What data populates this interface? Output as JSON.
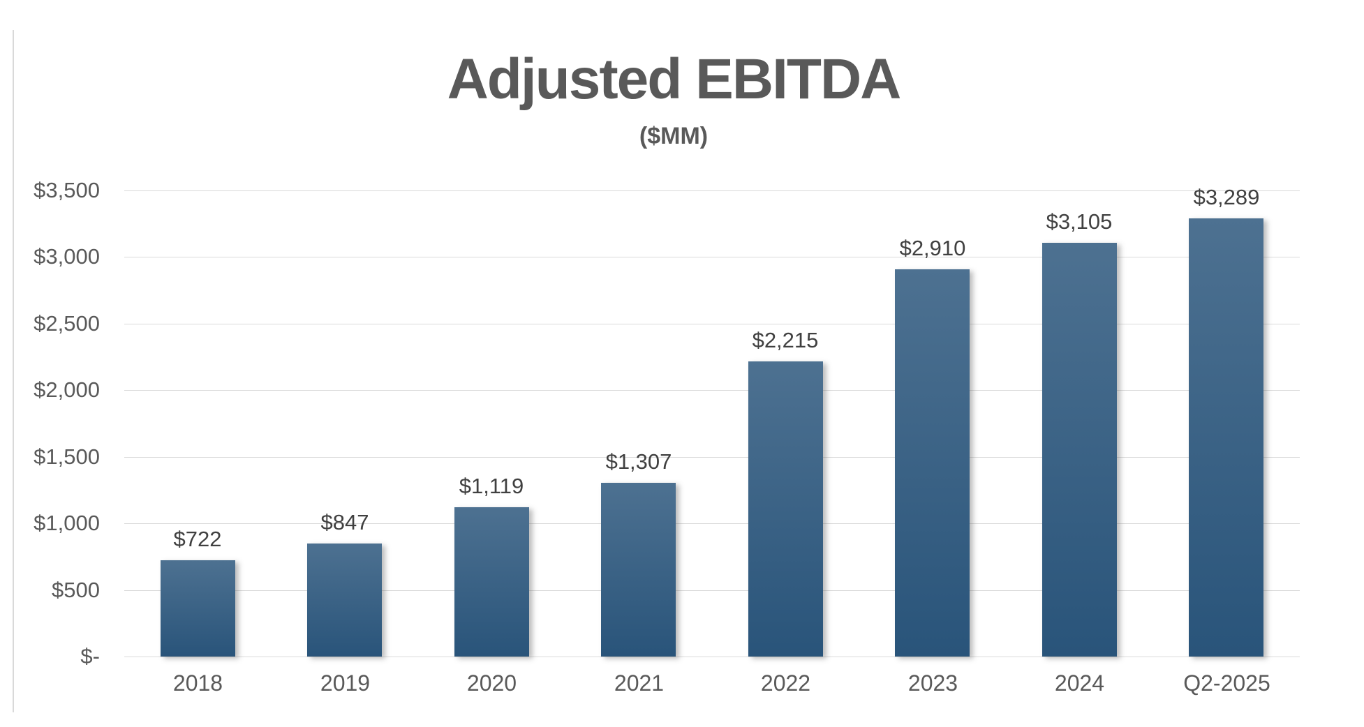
{
  "title": "Adjusted EBITDA",
  "subtitle": "($MM)",
  "chart_data": {
    "type": "bar",
    "title": "Adjusted EBITDA",
    "subtitle": "($MM)",
    "categories": [
      "2018",
      "2019",
      "2020",
      "2021",
      "2022",
      "2023",
      "2024",
      "Q2-2025"
    ],
    "values": [
      722,
      847,
      1119,
      1307,
      2215,
      2910,
      3105,
      3289
    ],
    "data_labels": [
      "$722",
      "$847",
      "$1,119",
      "$1,307",
      "$2,215",
      "$2,910",
      "$3,105",
      "$3,289"
    ],
    "xlabel": "",
    "ylabel": "",
    "ylim": [
      0,
      3500
    ],
    "y_tick_step": 500,
    "y_ticks": [
      {
        "value": 0,
        "label": "$-"
      },
      {
        "value": 500,
        "label": "$500"
      },
      {
        "value": 1000,
        "label": "$1,000"
      },
      {
        "value": 1500,
        "label": "$1,500"
      },
      {
        "value": 2000,
        "label": "$2,000"
      },
      {
        "value": 2500,
        "label": "$2,500"
      },
      {
        "value": 3000,
        "label": "$3,000"
      },
      {
        "value": 3500,
        "label": "$3,500"
      }
    ],
    "grid": true,
    "legend": false,
    "colors": {
      "bar_gradient_top": "#4d7191",
      "bar_gradient_bottom": "#29547a",
      "grid_color": "#d9d9d9",
      "axis_line_color": "#d9d9d9",
      "title_color": "#595959",
      "subtitle_color": "#595959",
      "y_tick_color": "#595959",
      "x_tick_color": "#595959",
      "data_label_color": "#404040",
      "side_line_color": "#d9d9d9"
    }
  }
}
